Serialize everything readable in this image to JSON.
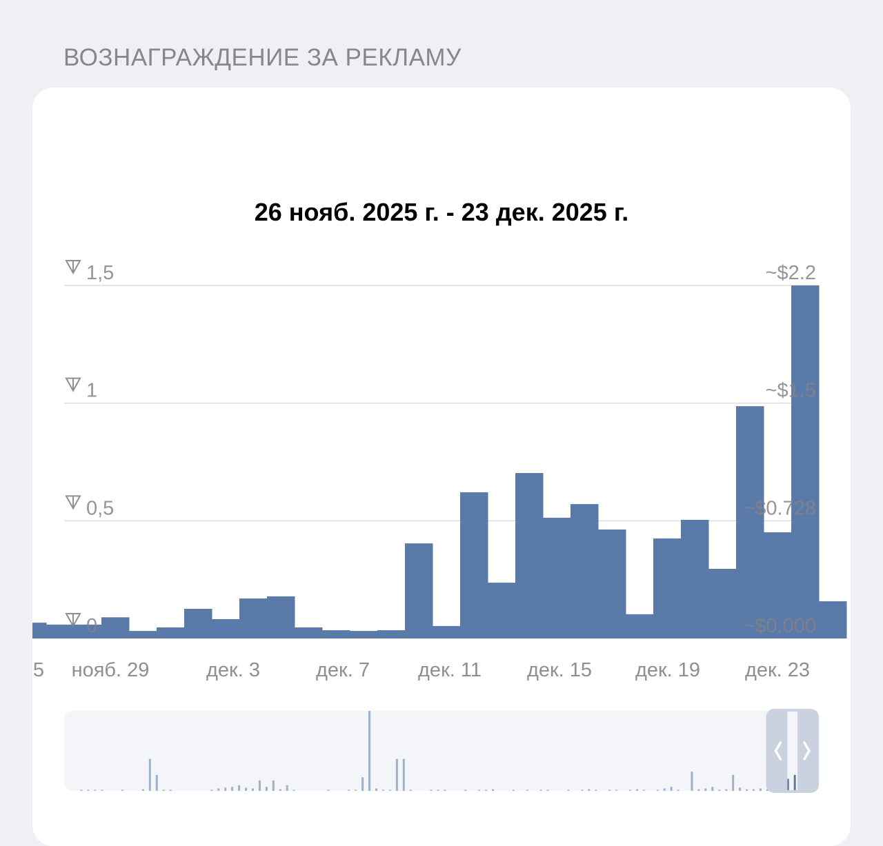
{
  "section_title": "ВОЗНАГРАЖДЕНИЕ ЗА РЕКЛАМУ",
  "date_range": "26 нояб. 2025 г. - 23 дек. 2025 г.",
  "colors": {
    "bar": "#5a7aa9",
    "grid": "#dcdce0",
    "navigator_bg": "#f4f5f8",
    "navigator_window": "#c9d2de",
    "navigator_bar": "#9fb0cb"
  },
  "chart_data": {
    "type": "bar",
    "currency_icon": "ton-icon",
    "categories": [
      "нояб. 25",
      "нояб. 26",
      "нояб. 27",
      "нояб. 28",
      "нояб. 29",
      "нояб. 30",
      "дек. 1",
      "дек. 2",
      "дек. 3",
      "дек. 4",
      "дек. 5",
      "дек. 6",
      "дек. 7",
      "дек. 8",
      "дек. 9",
      "дек. 10",
      "дек. 11",
      "дек. 12",
      "дек. 13",
      "дек. 14",
      "дек. 15",
      "дек. 16",
      "дек. 17",
      "дек. 18",
      "дек. 19",
      "дек. 20",
      "дек. 21",
      "дек. 22",
      "дек. 23",
      "дек. 24"
    ],
    "values": [
      0.067,
      0.059,
      0.059,
      0.09,
      0.032,
      0.047,
      0.126,
      0.082,
      0.17,
      0.179,
      0.047,
      0.035,
      0.032,
      0.035,
      0.404,
      0.053,
      0.621,
      0.237,
      0.703,
      0.513,
      0.571,
      0.463,
      0.103,
      0.425,
      0.504,
      0.296,
      0.987,
      0.451,
      1.5,
      0.158
    ],
    "x_tick_labels": [
      "5",
      "нояб. 29",
      "дек. 3",
      "дек. 7",
      "дек. 11",
      "дек. 15",
      "дек. 19",
      "дек. 23"
    ],
    "y_tick_labels": [
      "0",
      "0,5",
      "1",
      "1,5"
    ],
    "y_ticks": [
      0,
      0.5,
      1,
      1.5
    ],
    "y_right_tick_labels": [
      "~$0.000",
      "~$0.728",
      "~$1.5",
      "~$2.2"
    ],
    "ylim": [
      0,
      1.5
    ],
    "grid": true,
    "overview": {
      "values": [
        0,
        0,
        0.01,
        0.01,
        0.01,
        0.01,
        0,
        0,
        0.01,
        0,
        0,
        0.02,
        0.4,
        0.2,
        0.01,
        0.01,
        0,
        0,
        0,
        0,
        0,
        0.01,
        0.03,
        0.04,
        0.05,
        0.07,
        0.04,
        0.03,
        0.13,
        0.05,
        0.13,
        0.02,
        0.07,
        0.01,
        0,
        0,
        0,
        0,
        0.01,
        0,
        0,
        0.01,
        0.01,
        0.17,
        1.0,
        0.03,
        0.01,
        0.01,
        0.4,
        0.4,
        0.01,
        0,
        0,
        0.01,
        0.01,
        0.01,
        0,
        0,
        0.01,
        0,
        0.01,
        0.01,
        0.02,
        0,
        0,
        0.01,
        0,
        0.01,
        0,
        0.01,
        0.01,
        0,
        0,
        0.01,
        0,
        0.01,
        0.02,
        0.01,
        0,
        0.01,
        0.01,
        0,
        0.01,
        0.02,
        0.01,
        0,
        0.01,
        0.03,
        0.05,
        0.01,
        0,
        0.24,
        0.02,
        0.03,
        0.05,
        0.01,
        0.02,
        0.2,
        0.04,
        0.02,
        0.02,
        0.03,
        0.02,
        0.02,
        0.01,
        0.15,
        0.2,
        0.1,
        0,
        0
      ],
      "window": [
        0.93,
        1.0
      ]
    }
  }
}
